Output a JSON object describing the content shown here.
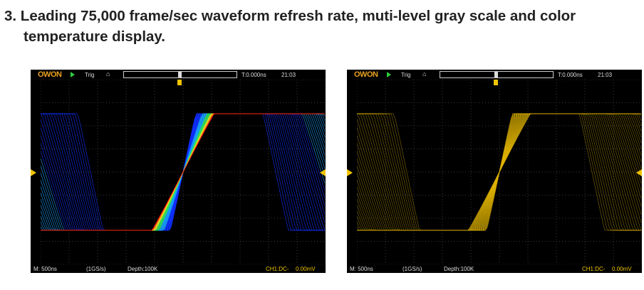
{
  "heading": {
    "line1": "3. Leading 75,000 frame/sec waveform refresh rate, muti-level gray scale and color",
    "line2": "temperature display."
  },
  "scopes": [
    {
      "logo": "OWON",
      "trig": "Trig",
      "time_offset": "T:0.000ns",
      "clock": "21:03",
      "timebase": "M: 500ns",
      "sample_rate": "(1GS/s)",
      "depth": "Depth:100K",
      "channel": "CH1:DC-",
      "trigger_level": "0.00mV",
      "display_mode": "color-temperature"
    },
    {
      "logo": "OWON",
      "trig": "Trig",
      "time_offset": "T:0.000ns",
      "clock": "21:03",
      "timebase": "M: 500ns",
      "sample_rate": "(1GS/s)",
      "depth": "Depth:100K",
      "channel": "CH1:DC-",
      "trigger_level": "0.00mV",
      "display_mode": "gray-scale"
    }
  ],
  "colors": {
    "accent": "#f0c400",
    "grid": "#3a3a3a",
    "logo": "#e8a020"
  }
}
